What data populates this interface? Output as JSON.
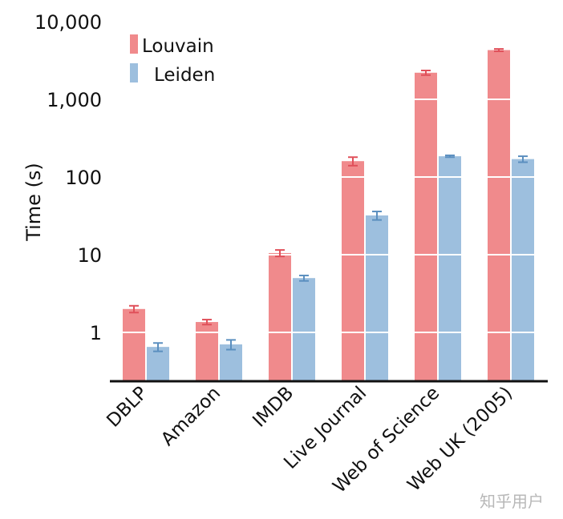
{
  "chart_data": {
    "type": "bar",
    "title": "",
    "xlabel": "",
    "ylabel": "Time (s)",
    "yscale": "log",
    "ylim": [
      0.5,
      10000
    ],
    "yticks": [
      1,
      10,
      100,
      1000,
      10000
    ],
    "ytick_labels": [
      "1",
      "10",
      "100",
      "1,000",
      "10,000"
    ],
    "grid": "white horizontal lines through bars at major ticks",
    "legend_position": "upper left",
    "categories": [
      "DBLP",
      "Amazon",
      "IMDB",
      "Live Journal",
      "Web of Science",
      "Web UK (2005)"
    ],
    "series": [
      {
        "name": "Louvain",
        "color": "#f08a8c",
        "error_color": "#e0505a",
        "values": [
          2.0,
          1.36,
          10.5,
          160,
          2200,
          4300
        ],
        "errors": [
          0.2,
          0.1,
          1.0,
          20,
          150,
          150
        ]
      },
      {
        "name": "Leiden",
        "color": "#9dbfde",
        "error_color": "#5b8fbf",
        "values": [
          0.65,
          0.7,
          5.0,
          32,
          185,
          170
        ],
        "errors": [
          0.08,
          0.1,
          0.4,
          4,
          5,
          15
        ]
      }
    ]
  },
  "legend": {
    "items": [
      {
        "label": "Louvain",
        "color": "#f08a8c"
      },
      {
        "label": "Leiden",
        "color": "#9dbfde"
      }
    ]
  },
  "axis": {
    "ylabel": "Time (s)"
  },
  "watermark": "知乎用户"
}
